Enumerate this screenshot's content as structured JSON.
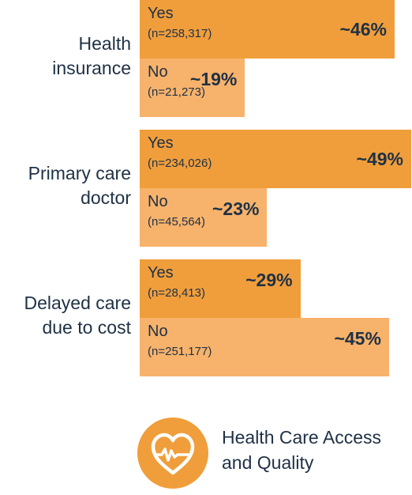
{
  "chart_data": {
    "type": "bar",
    "orientation": "horizontal",
    "unit": "%",
    "xlim": [
      0,
      50
    ],
    "groups": [
      {
        "label_lines": [
          "Health",
          "insurance"
        ],
        "bars": [
          {
            "answer": "Yes",
            "n": "(n=258,317)",
            "value": 46,
            "value_label": "~46%",
            "color": "#f09e3b"
          },
          {
            "answer": "No",
            "n": "(n=21,273)",
            "value": 19,
            "value_label": "~19%",
            "color": "#f7b26b"
          }
        ]
      },
      {
        "label_lines": [
          "Primary care",
          "doctor"
        ],
        "bars": [
          {
            "answer": "Yes",
            "n": "(n=234,026)",
            "value": 49,
            "value_label": "~49%",
            "color": "#f09e3b"
          },
          {
            "answer": "No",
            "n": "(n=45,564)",
            "value": 23,
            "value_label": "~23%",
            "color": "#f7b26b"
          }
        ]
      },
      {
        "label_lines": [
          "Delayed care",
          "due to cost"
        ],
        "bars": [
          {
            "answer": "Yes",
            "n": "(n=28,413)",
            "value": 29,
            "value_label": "~29%",
            "color": "#f09e3b"
          },
          {
            "answer": "No",
            "n": "(n=251,177)",
            "value": 45,
            "value_label": "~45%",
            "color": "#f7b26b"
          }
        ]
      }
    ]
  },
  "footer": {
    "icon": "heart-pulse-icon",
    "icon_circle_color": "#f09e3b",
    "topic_line1": "Health Care Access",
    "topic_line2": "and Quality"
  }
}
